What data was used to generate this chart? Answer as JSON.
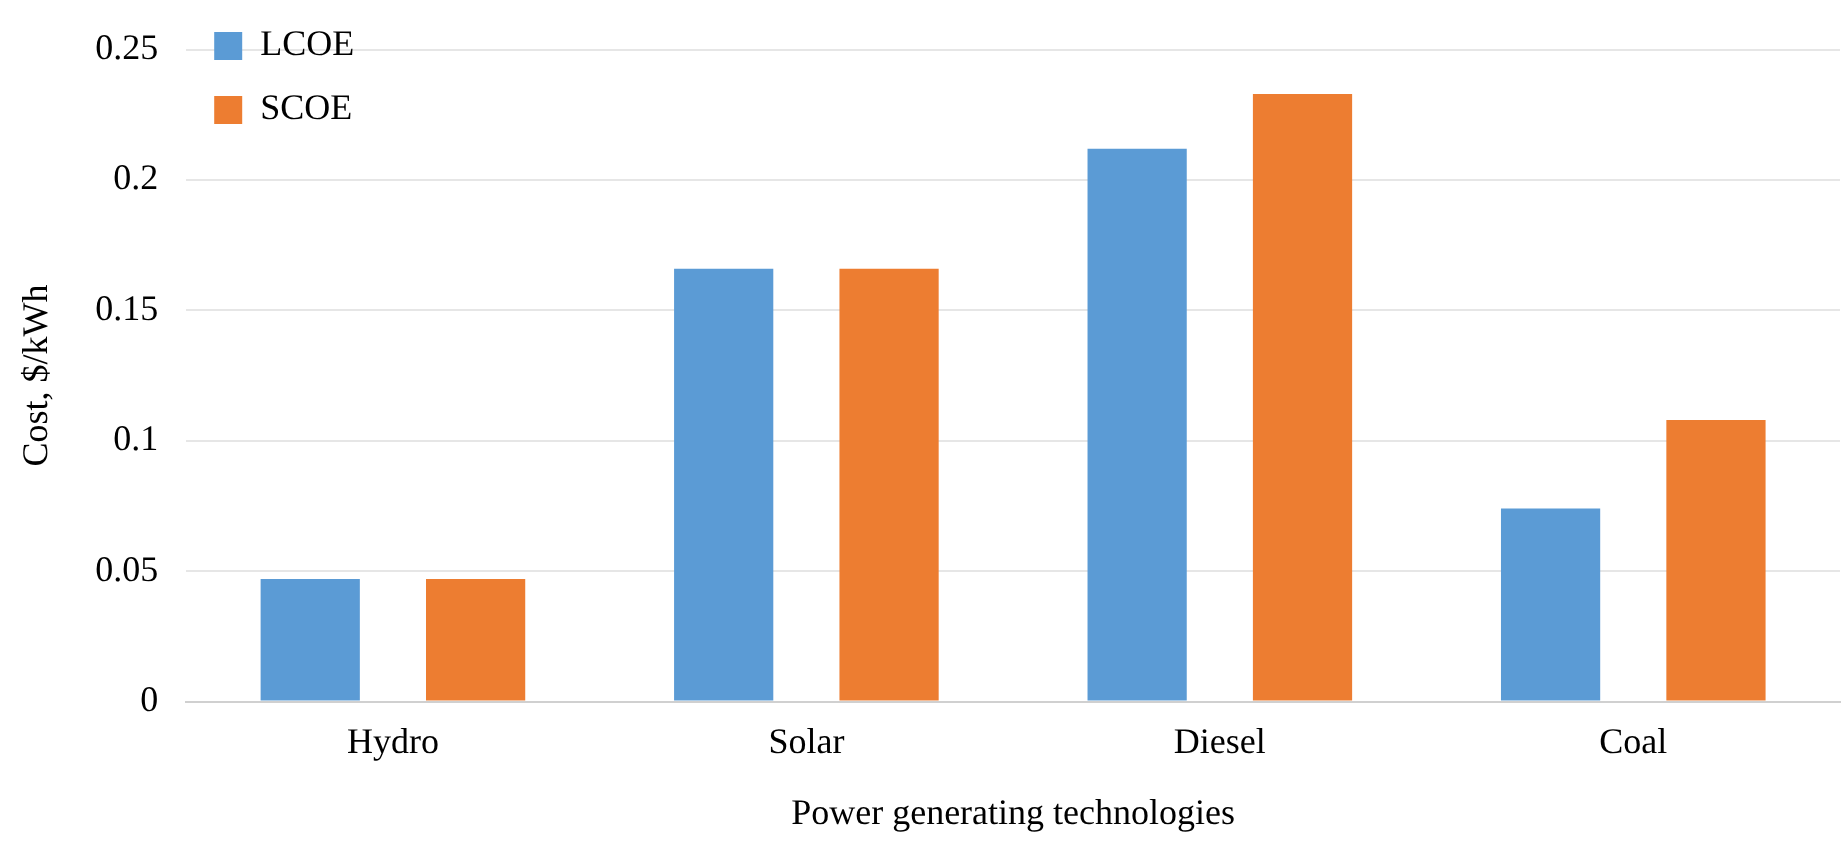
{
  "chart_data": {
    "type": "bar",
    "xlabel": "Power generating technologies",
    "ylabel": "Cost, $/kWh",
    "categories": [
      "Hydro",
      "Solar",
      "Diesel",
      "Coal"
    ],
    "series": [
      {
        "name": "LCOE",
        "color": "#5b9bd5",
        "values": [
          0.047,
          0.166,
          0.212,
          0.074
        ]
      },
      {
        "name": "SCOE",
        "color": "#ed7d31",
        "values": [
          0.047,
          0.166,
          0.233,
          0.108
        ]
      }
    ],
    "ylim": [
      0,
      0.25
    ],
    "yticks": [
      0,
      0.05,
      0.1,
      0.15,
      0.2,
      0.25
    ],
    "grid": "y",
    "legend": "top left"
  }
}
